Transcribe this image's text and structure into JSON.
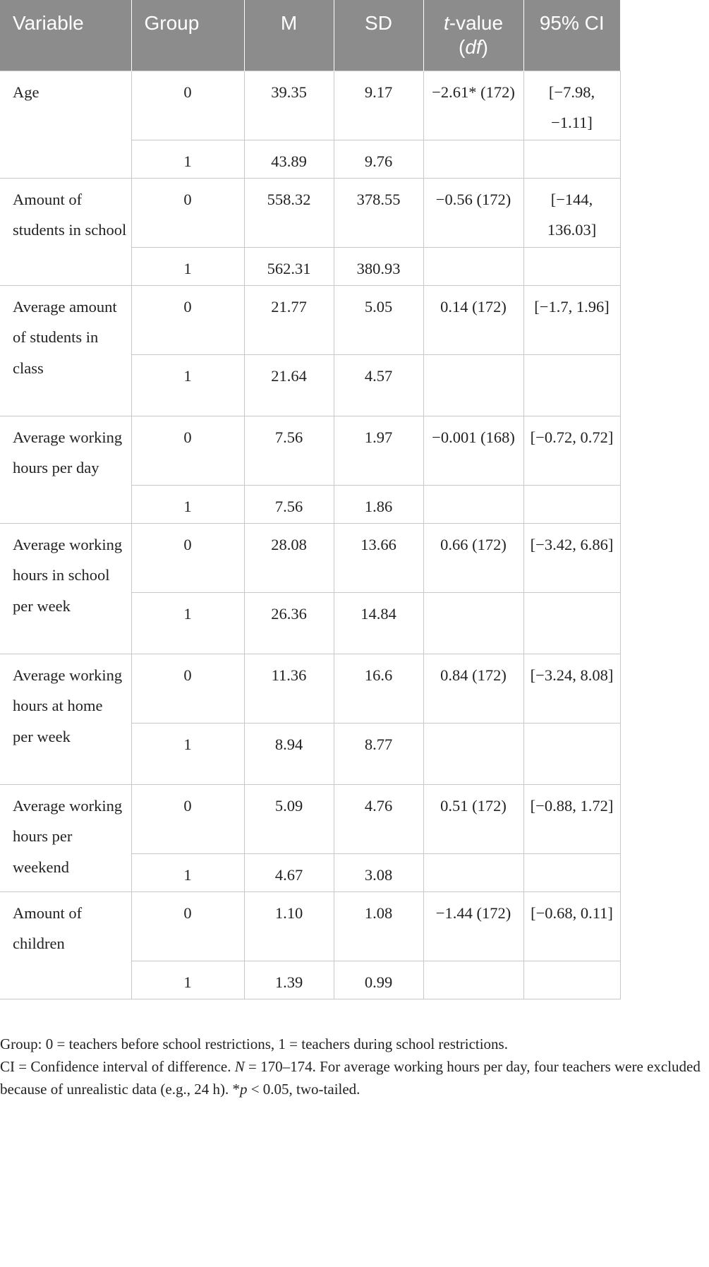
{
  "table": {
    "headers": {
      "variable": "Variable",
      "group": "Group",
      "m": "M",
      "sd": "SD",
      "t_line1_italic": "t",
      "t_line1_rest": "-value",
      "t_line2_open": "(",
      "t_line2_italic": "df",
      "t_line2_close": ")",
      "ci": "95% CI"
    },
    "rows": [
      {
        "variable": "Age",
        "g0": {
          "group": "0",
          "m": "39.35",
          "sd": "9.17"
        },
        "g1": {
          "group": "1",
          "m": "43.89",
          "sd": "9.76"
        },
        "t": "−2.61* (172)",
        "ci": "[−7.98, −1.11]"
      },
      {
        "variable": "Amount of students in school",
        "g0": {
          "group": "0",
          "m": "558.32",
          "sd": "378.55"
        },
        "g1": {
          "group": "1",
          "m": "562.31",
          "sd": "380.93"
        },
        "t": "−0.56 (172)",
        "ci": "[−144, 136.03]"
      },
      {
        "variable": "Average amount of students in class",
        "g0": {
          "group": "0",
          "m": "21.77",
          "sd": "5.05"
        },
        "g1": {
          "group": "1",
          "m": "21.64",
          "sd": "4.57"
        },
        "t": "0.14 (172)",
        "ci": "[−1.7, 1.96]"
      },
      {
        "variable": "Average working hours per day",
        "g0": {
          "group": "0",
          "m": "7.56",
          "sd": "1.97"
        },
        "g1": {
          "group": "1",
          "m": "7.56",
          "sd": "1.86"
        },
        "t": "−0.001 (168)",
        "ci": "[−0.72, 0.72]"
      },
      {
        "variable": "Average working hours in school per week",
        "g0": {
          "group": "0",
          "m": "28.08",
          "sd": "13.66"
        },
        "g1": {
          "group": "1",
          "m": "26.36",
          "sd": "14.84"
        },
        "t": "0.66 (172)",
        "ci": "[−3.42, 6.86]"
      },
      {
        "variable": "Average working hours at home per week",
        "g0": {
          "group": "0",
          "m": "11.36",
          "sd": "16.6"
        },
        "g1": {
          "group": "1",
          "m": "8.94",
          "sd": "8.77"
        },
        "t": "0.84 (172)",
        "ci": "[−3.24, 8.08]"
      },
      {
        "variable": "Average working hours per weekend",
        "g0": {
          "group": "0",
          "m": "5.09",
          "sd": "4.76"
        },
        "g1": {
          "group": "1",
          "m": "4.67",
          "sd": "3.08"
        },
        "t": "0.51 (172)",
        "ci": "[−0.88, 1.72]"
      },
      {
        "variable": "Amount of children",
        "g0": {
          "group": "0",
          "m": "1.10",
          "sd": "1.08"
        },
        "g1": {
          "group": "1",
          "m": "1.39",
          "sd": "0.99"
        },
        "t": "−1.44 (172)",
        "ci": "[−0.68, 0.11]"
      }
    ]
  },
  "note": {
    "line1": "Group: 0 = teachers before school restrictions, 1 = teachers during school restrictions.",
    "line2_a": "CI = Confidence interval of difference. ",
    "line2_N": "N",
    "line2_b": " = 170–174. For average working hours per day, four teachers were excluded because of unrealistic data (e.g., 24 h). *",
    "line2_p": "p",
    "line2_c": " < 0.05, two-tailed."
  }
}
